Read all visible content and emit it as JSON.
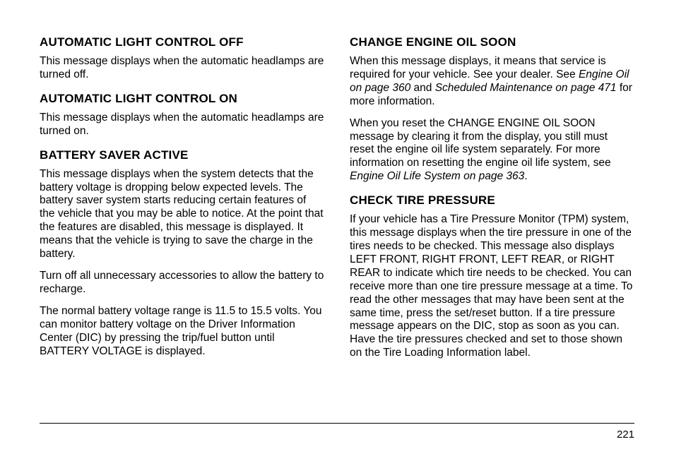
{
  "left": {
    "h1": "AUTOMATIC LIGHT CONTROL OFF",
    "p1": "This message displays when the automatic headlamps are turned off.",
    "h2": "AUTOMATIC LIGHT CONTROL ON",
    "p2": "This message displays when the automatic headlamps are turned on.",
    "h3": "BATTERY SAVER ACTIVE",
    "p3": "This message displays when the system detects that the battery voltage is dropping below expected levels. The battery saver system starts reducing certain features of the vehicle that you may be able to notice. At the point that the features are disabled, this message is displayed. It means that the vehicle is trying to save the charge in the battery.",
    "p4": "Turn off all unnecessary accessories to allow the battery to recharge.",
    "p5": "The normal battery voltage range is 11.5 to 15.5 volts. You can monitor battery voltage on the Driver Information Center (DIC) by pressing the trip/fuel button until BATTERY VOLTAGE is displayed."
  },
  "right": {
    "h1": "CHANGE ENGINE OIL SOON",
    "p1a": "When this message displays, it means that service is required for your vehicle. See your dealer. See ",
    "p1b": "Engine Oil on page 360",
    "p1c": " and ",
    "p1d": "Scheduled Maintenance on page 471",
    "p1e": " for more information.",
    "p2a": "When you reset the CHANGE ENGINE OIL SOON message by clearing it from the display, you still must reset the engine oil life system separately. For more information on resetting the engine oil life system, see ",
    "p2b": "Engine Oil Life System on page 363",
    "p2c": ".",
    "h2": "CHECK TIRE PRESSURE",
    "p3": "If your vehicle has a Tire Pressure Monitor (TPM) system, this message displays when the tire pressure in one of the tires needs to be checked. This message also displays LEFT FRONT, RIGHT FRONT, LEFT REAR, or RIGHT REAR to indicate which tire needs to be checked. You can receive more than one tire pressure message at a time. To read the other messages that may have been sent at the same time, press the set/reset button. If a tire pressure message appears on the DIC, stop as soon as you can. Have the tire pressures checked and set to those shown on the Tire Loading Information label."
  },
  "pageNumber": "221"
}
